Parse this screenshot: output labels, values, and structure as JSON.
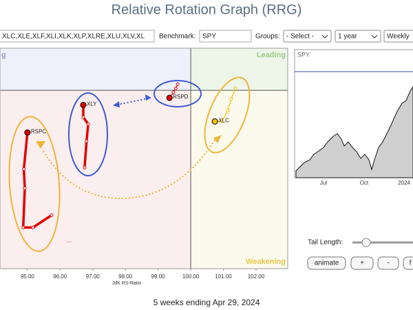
{
  "header": {
    "title": "Relative Rotation Graph (RRG)"
  },
  "toolbar": {
    "symbols": "XLC,XLE,XLF,XLI,XLK,XLP,XLRE,XLU,XLV,XL",
    "benchmark_label": "Benchmark:",
    "benchmark": "SPY",
    "groups_label": "Groups:",
    "groups": "- Select -",
    "period": "1 year",
    "frequency": "Weekly"
  },
  "chart_data": {
    "type": "scatter",
    "x_label": "JdK RS-Ratio",
    "quadrants": [
      "g",
      "Leading",
      "Weakening"
    ],
    "center": [
      100,
      100
    ],
    "xlim": [
      94.16,
      102.97
    ],
    "ylim": [
      94.5,
      101.3
    ],
    "xticks": [
      {
        "value": 95,
        "label": "95.00"
      },
      {
        "value": 96,
        "label": "96.00"
      },
      {
        "value": 97,
        "label": "97.00"
      },
      {
        "value": 98,
        "label": "98.00"
      },
      {
        "value": 99,
        "label": "99.00"
      },
      {
        "value": 100,
        "label": "100.00"
      },
      {
        "value": 101,
        "label": "101.00"
      },
      {
        "value": 102,
        "label": "102.00"
      }
    ],
    "series": [
      {
        "name": "RSPC",
        "color": "#e00000",
        "x": [
          95.74,
          95.17,
          94.87,
          94.92,
          94.89,
          95.0
        ],
        "values": [
          96.15,
          95.77,
          95.77,
          96.98,
          97.57,
          98.7
        ]
      },
      {
        "name": "XLY",
        "color": "#e00000",
        "x": [
          96.75,
          96.81,
          96.86,
          96.71,
          96.71
        ],
        "values": [
          97.62,
          98.43,
          98.96,
          99.17,
          99.55
        ]
      },
      {
        "name": "RSPD",
        "color": "#e00000",
        "x": [
          99.6,
          99.54,
          99.47,
          99.35
        ],
        "values": [
          100.19,
          100.06,
          99.94,
          99.77
        ]
      },
      {
        "name": "XLC",
        "color": "#f2c200",
        "x": [
          101.37,
          101.24,
          101.14,
          100.95,
          100.74
        ],
        "values": [
          100.06,
          99.74,
          99.38,
          99.04,
          99.04
        ]
      }
    ]
  },
  "benchmark_chart": {
    "title": "SPY",
    "xticks": [
      "Jul",
      "Oct",
      "2024"
    ]
  },
  "controls": {
    "tail_length_label": "Tail Length:",
    "buttons": [
      "animate",
      "+",
      "-",
      "f"
    ]
  },
  "footer": "5 weeks ending Apr 29, 2024"
}
